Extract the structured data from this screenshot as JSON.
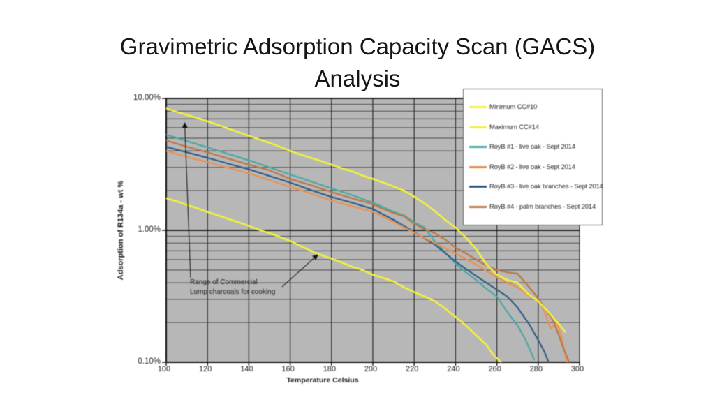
{
  "slide": {
    "title": {
      "line1": "Gravimetric Adsorption Capacity Scan (GACS)",
      "line2": "Analysis"
    }
  },
  "chart_data": {
    "type": "line",
    "title": "",
    "xlabel": "Temperature Celsius",
    "ylabel": "Adsorption of R134a - wt %",
    "x_scale": "linear",
    "y_scale": "log",
    "xlim": [
      100,
      300
    ],
    "ylim_wt_percent": [
      0.1,
      10
    ],
    "grid": true,
    "plot_bg": "#b7b7b7",
    "x_ticks": [
      100,
      120,
      140,
      160,
      180,
      200,
      220,
      240,
      260,
      280,
      300
    ],
    "y_ticks": [
      {
        "label": "10.00%",
        "value": 10
      },
      {
        "label": "1.00%",
        "value": 1
      },
      {
        "label": "0.10%",
        "value": 0.1
      }
    ],
    "legend_position": "top-right-overlay",
    "annotation": {
      "line1": "Range of Commercial",
      "line2": "Lump charcoals for cooking"
    },
    "series": [
      {
        "name": "Minimum CC#10",
        "color": "#f3f13c",
        "points": [
          [
            100,
            1.75
          ],
          [
            105,
            1.66
          ],
          [
            110,
            1.56
          ],
          [
            115,
            1.47
          ],
          [
            120,
            1.38
          ],
          [
            125,
            1.3
          ],
          [
            130,
            1.22
          ],
          [
            135,
            1.15
          ],
          [
            140,
            1.08
          ],
          [
            145,
            1.01
          ],
          [
            150,
            0.95
          ],
          [
            155,
            0.89
          ],
          [
            160,
            0.83
          ],
          [
            165,
            0.76
          ],
          [
            170,
            0.7
          ],
          [
            175,
            0.65
          ],
          [
            180,
            0.61
          ],
          [
            185,
            0.57
          ],
          [
            190,
            0.53
          ],
          [
            195,
            0.5
          ],
          [
            200,
            0.46
          ],
          [
            205,
            0.435
          ],
          [
            210,
            0.41
          ],
          [
            215,
            0.37
          ],
          [
            220,
            0.34
          ],
          [
            225,
            0.315
          ],
          [
            230,
            0.29
          ],
          [
            235,
            0.255
          ],
          [
            240,
            0.22
          ],
          [
            245,
            0.19
          ],
          [
            250,
            0.16
          ],
          [
            255,
            0.135
          ],
          [
            258,
            0.115
          ],
          [
            262,
            0.1
          ]
        ]
      },
      {
        "name": "Maximum CC#14",
        "color": "#f3f13c",
        "points": [
          [
            100,
            8.4
          ],
          [
            105,
            7.9
          ],
          [
            110,
            7.5
          ],
          [
            115,
            7.1
          ],
          [
            120,
            6.7
          ],
          [
            125,
            6.3
          ],
          [
            130,
            5.9
          ],
          [
            135,
            5.55
          ],
          [
            140,
            5.2
          ],
          [
            145,
            4.9
          ],
          [
            150,
            4.6
          ],
          [
            155,
            4.3
          ],
          [
            160,
            4.0
          ],
          [
            165,
            3.75
          ],
          [
            170,
            3.55
          ],
          [
            175,
            3.35
          ],
          [
            180,
            3.15
          ],
          [
            185,
            2.95
          ],
          [
            190,
            2.8
          ],
          [
            195,
            2.6
          ],
          [
            200,
            2.45
          ],
          [
            205,
            2.3
          ],
          [
            210,
            2.15
          ],
          [
            215,
            2.0
          ],
          [
            220,
            1.8
          ],
          [
            225,
            1.6
          ],
          [
            230,
            1.4
          ],
          [
            235,
            1.2
          ],
          [
            240,
            1.05
          ],
          [
            245,
            0.88
          ],
          [
            250,
            0.72
          ],
          [
            255,
            0.55
          ],
          [
            260,
            0.46
          ],
          [
            265,
            0.42
          ],
          [
            270,
            0.4
          ],
          [
            275,
            0.33
          ],
          [
            280,
            0.29
          ],
          [
            285,
            0.24
          ],
          [
            288,
            0.21
          ],
          [
            290,
            0.195
          ],
          [
            293,
            0.17
          ]
        ]
      },
      {
        "name": "RoyB #1 - live oak - Sept 2014",
        "color": "#46a9a4",
        "points": [
          [
            100,
            5.3
          ],
          [
            110,
            4.75
          ],
          [
            120,
            4.25
          ],
          [
            130,
            3.8
          ],
          [
            140,
            3.4
          ],
          [
            150,
            3.0
          ],
          [
            160,
            2.65
          ],
          [
            170,
            2.35
          ],
          [
            180,
            2.08
          ],
          [
            190,
            1.85
          ],
          [
            200,
            1.62
          ],
          [
            205,
            1.5
          ],
          [
            210,
            1.38
          ],
          [
            215,
            1.3
          ],
          [
            220,
            1.15
          ],
          [
            225,
            1.05
          ],
          [
            230,
            0.82
          ],
          [
            235,
            0.68
          ],
          [
            240,
            0.56
          ],
          [
            245,
            0.48
          ],
          [
            250,
            0.42
          ],
          [
            255,
            0.36
          ],
          [
            260,
            0.315
          ],
          [
            265,
            0.24
          ],
          [
            270,
            0.19
          ],
          [
            274,
            0.147
          ],
          [
            278,
            0.105
          ]
        ]
      },
      {
        "name": "RoyB #2 - live oak - Sept 2014",
        "color": "#ef8f4e",
        "points": [
          [
            100,
            4.0
          ],
          [
            110,
            3.6
          ],
          [
            120,
            3.3
          ],
          [
            130,
            2.98
          ],
          [
            140,
            2.7
          ],
          [
            150,
            2.4
          ],
          [
            160,
            2.13
          ],
          [
            170,
            1.9
          ],
          [
            180,
            1.68
          ],
          [
            190,
            1.52
          ],
          [
            200,
            1.38
          ],
          [
            210,
            1.16
          ],
          [
            220,
            0.96
          ],
          [
            230,
            0.8
          ],
          [
            240,
            0.67
          ],
          [
            250,
            0.55
          ],
          [
            260,
            0.44
          ],
          [
            265,
            0.4
          ],
          [
            270,
            0.37
          ],
          [
            276,
            0.315
          ],
          [
            281,
            0.285
          ],
          [
            284,
            0.22
          ],
          [
            286,
            0.18
          ],
          [
            289,
            0.2
          ],
          [
            291,
            0.16
          ],
          [
            294,
            0.1
          ]
        ]
      },
      {
        "name": "RoyB #3 - live oak branches - Sept 2014",
        "color": "#2f5d88",
        "points": [
          [
            100,
            4.3
          ],
          [
            110,
            3.9
          ],
          [
            120,
            3.55
          ],
          [
            130,
            3.2
          ],
          [
            140,
            2.9
          ],
          [
            150,
            2.58
          ],
          [
            160,
            2.3
          ],
          [
            170,
            2.02
          ],
          [
            180,
            1.79
          ],
          [
            190,
            1.62
          ],
          [
            200,
            1.45
          ],
          [
            210,
            1.2
          ],
          [
            220,
            0.97
          ],
          [
            230,
            0.78
          ],
          [
            240,
            0.58
          ],
          [
            245,
            0.51
          ],
          [
            250,
            0.45
          ],
          [
            255,
            0.4
          ],
          [
            260,
            0.355
          ],
          [
            265,
            0.315
          ],
          [
            270,
            0.26
          ],
          [
            276,
            0.19
          ],
          [
            280,
            0.147
          ],
          [
            283,
            0.12
          ],
          [
            285,
            0.1
          ]
        ]
      },
      {
        "name": "RoyB #4 - palm branches - Sept 2014",
        "color": "#c07543",
        "points": [
          [
            100,
            4.8
          ],
          [
            110,
            4.3
          ],
          [
            120,
            3.9
          ],
          [
            130,
            3.5
          ],
          [
            140,
            3.15
          ],
          [
            150,
            2.85
          ],
          [
            160,
            2.45
          ],
          [
            170,
            2.2
          ],
          [
            180,
            1.95
          ],
          [
            190,
            1.75
          ],
          [
            200,
            1.58
          ],
          [
            205,
            1.45
          ],
          [
            210,
            1.35
          ],
          [
            215,
            1.28
          ],
          [
            220,
            1.12
          ],
          [
            225,
            1.02
          ],
          [
            230,
            0.95
          ],
          [
            235,
            0.85
          ],
          [
            240,
            0.74
          ],
          [
            245,
            0.67
          ],
          [
            250,
            0.6
          ],
          [
            255,
            0.54
          ],
          [
            260,
            0.5
          ],
          [
            265,
            0.48
          ],
          [
            270,
            0.47
          ],
          [
            275,
            0.38
          ],
          [
            279,
            0.32
          ],
          [
            283,
            0.26
          ],
          [
            287,
            0.21
          ],
          [
            290,
            0.16
          ],
          [
            292,
            0.13
          ],
          [
            295,
            0.1
          ]
        ]
      }
    ]
  }
}
